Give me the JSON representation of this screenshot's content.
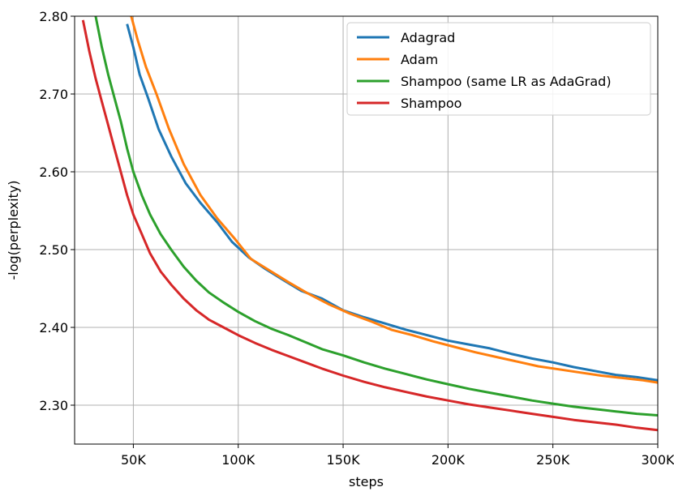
{
  "chart_data": {
    "type": "line",
    "title": "",
    "xlabel": "steps",
    "ylabel": "-log(perplexity)",
    "xlim": [
      22000,
      300000
    ],
    "ylim": [
      2.25,
      2.8
    ],
    "grid": true,
    "legend_position": "top-right",
    "x_ticks": [
      {
        "value": 50000,
        "label": "50K"
      },
      {
        "value": 100000,
        "label": "100K"
      },
      {
        "value": 150000,
        "label": "150K"
      },
      {
        "value": 200000,
        "label": "200K"
      },
      {
        "value": 250000,
        "label": "250K"
      },
      {
        "value": 300000,
        "label": "300K"
      }
    ],
    "y_ticks": [
      {
        "value": 2.3,
        "label": "2.30"
      },
      {
        "value": 2.4,
        "label": "2.40"
      },
      {
        "value": 2.5,
        "label": "2.50"
      },
      {
        "value": 2.6,
        "label": "2.60"
      },
      {
        "value": 2.7,
        "label": "2.70"
      },
      {
        "value": 2.8,
        "label": "2.80"
      }
    ],
    "series": [
      {
        "name": "Adagrad",
        "color": "#1f77b4",
        "x": [
          47000,
          50000,
          53000,
          57000,
          62000,
          68000,
          75000,
          82000,
          90000,
          97000,
          105000,
          113000,
          122000,
          130000,
          140000,
          150000,
          160000,
          170000,
          180000,
          190000,
          200000,
          210000,
          220000,
          230000,
          240000,
          250000,
          260000,
          270000,
          280000,
          290000,
          300000
        ],
        "y": [
          2.79,
          2.76,
          2.725,
          2.695,
          2.655,
          2.62,
          2.585,
          2.56,
          2.535,
          2.51,
          2.49,
          2.475,
          2.46,
          2.447,
          2.437,
          2.422,
          2.413,
          2.405,
          2.397,
          2.39,
          2.383,
          2.378,
          2.373,
          2.366,
          2.36,
          2.355,
          2.349,
          2.344,
          2.339,
          2.336,
          2.332
        ]
      },
      {
        "name": "Adam",
        "color": "#ff7f0e",
        "x": [
          49000,
          52000,
          56000,
          61000,
          67000,
          74000,
          82000,
          90000,
          98000,
          106000,
          115000,
          124000,
          133000,
          143000,
          153000,
          163000,
          173000,
          183000,
          193000,
          203000,
          213000,
          223000,
          233000,
          243000,
          253000,
          263000,
          273000,
          283000,
          293000,
          300000
        ],
        "y": [
          2.8,
          2.77,
          2.735,
          2.7,
          2.655,
          2.61,
          2.57,
          2.54,
          2.515,
          2.488,
          2.473,
          2.458,
          2.444,
          2.43,
          2.418,
          2.408,
          2.397,
          2.39,
          2.382,
          2.375,
          2.368,
          2.362,
          2.356,
          2.35,
          2.346,
          2.342,
          2.338,
          2.335,
          2.332,
          2.329
        ]
      },
      {
        "name": "Shampoo (same LR as AdaGrad)",
        "color": "#2ca02c",
        "x": [
          32000,
          35000,
          38000,
          41000,
          44000,
          47000,
          50000,
          54000,
          58000,
          63000,
          68000,
          74000,
          80000,
          86000,
          93000,
          100000,
          108000,
          116000,
          124000,
          132000,
          140000,
          150000,
          160000,
          170000,
          180000,
          190000,
          200000,
          210000,
          220000,
          230000,
          240000,
          250000,
          260000,
          270000,
          280000,
          290000,
          300000
        ],
        "y": [
          2.8,
          2.76,
          2.725,
          2.695,
          2.665,
          2.63,
          2.6,
          2.57,
          2.545,
          2.52,
          2.5,
          2.478,
          2.46,
          2.445,
          2.432,
          2.42,
          2.408,
          2.398,
          2.39,
          2.381,
          2.372,
          2.364,
          2.355,
          2.347,
          2.34,
          2.333,
          2.327,
          2.321,
          2.316,
          2.311,
          2.306,
          2.302,
          2.298,
          2.295,
          2.292,
          2.289,
          2.287
        ]
      },
      {
        "name": "Shampoo",
        "color": "#d62728",
        "x": [
          26000,
          29000,
          32000,
          35000,
          38000,
          41000,
          44000,
          47000,
          50000,
          54000,
          58000,
          63000,
          68000,
          74000,
          80000,
          86000,
          93000,
          100000,
          108000,
          116000,
          124000,
          132000,
          140000,
          150000,
          160000,
          170000,
          180000,
          190000,
          200000,
          210000,
          220000,
          230000,
          240000,
          250000,
          260000,
          270000,
          280000,
          290000,
          300000
        ],
        "y": [
          2.795,
          2.755,
          2.72,
          2.69,
          2.66,
          2.63,
          2.6,
          2.57,
          2.545,
          2.52,
          2.495,
          2.472,
          2.455,
          2.437,
          2.422,
          2.41,
          2.4,
          2.39,
          2.38,
          2.371,
          2.363,
          2.355,
          2.347,
          2.338,
          2.33,
          2.323,
          2.317,
          2.311,
          2.306,
          2.301,
          2.297,
          2.293,
          2.289,
          2.285,
          2.281,
          2.278,
          2.275,
          2.271,
          2.268
        ]
      }
    ]
  }
}
